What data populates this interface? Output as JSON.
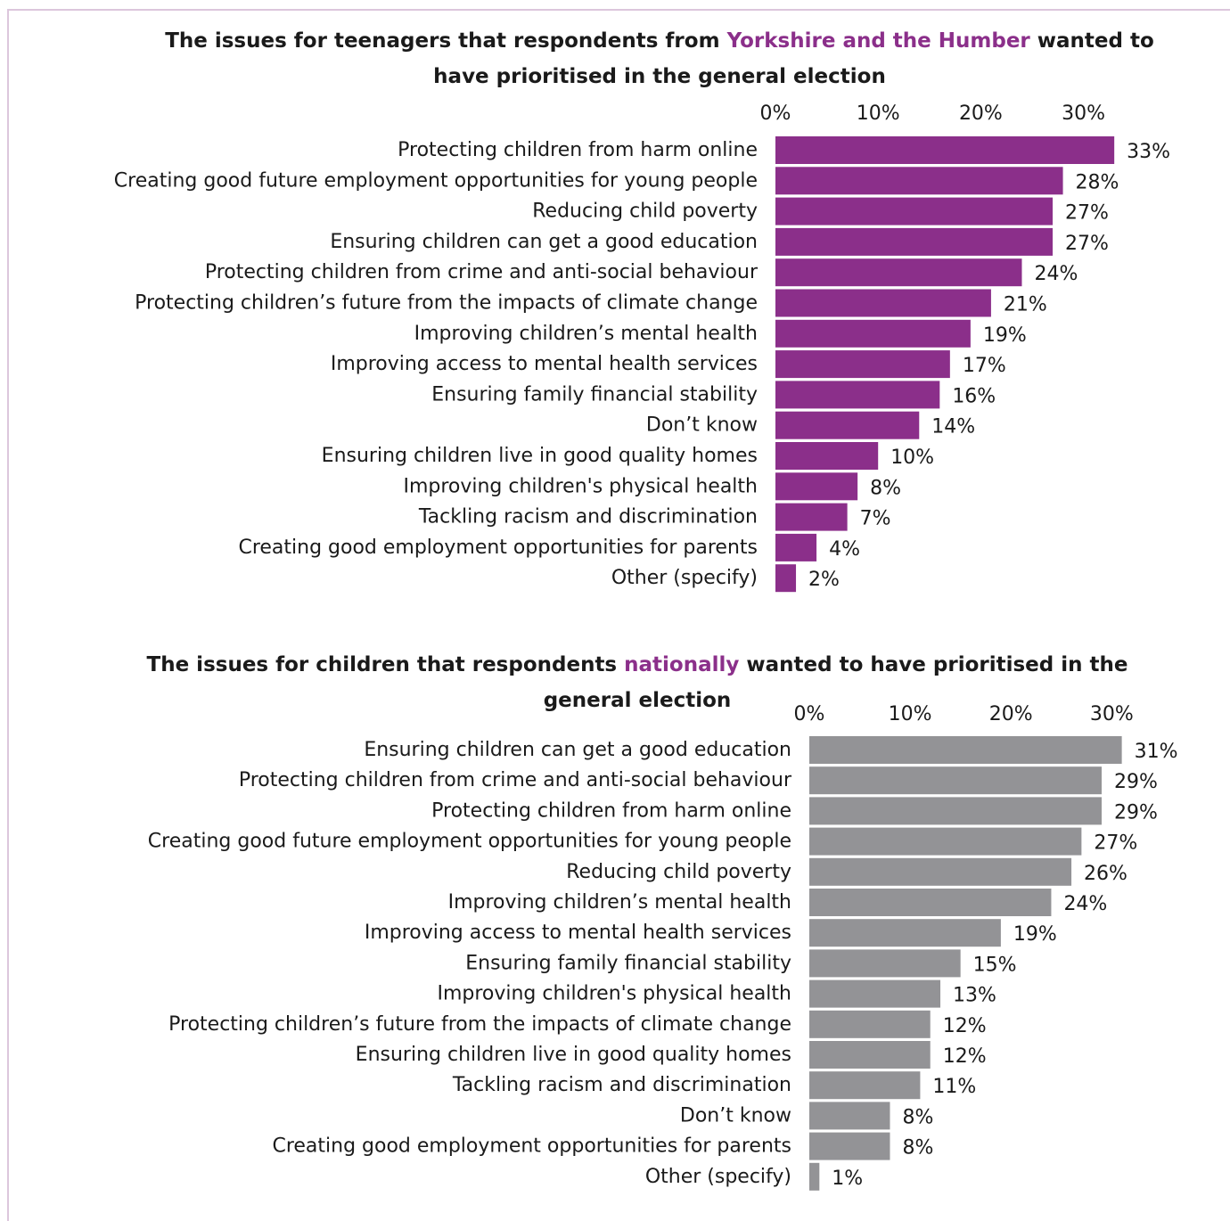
{
  "colors": {
    "regional": "#8b2f8a",
    "national": "#939396",
    "highlight": "#8b2f8a"
  },
  "chart_data": [
    {
      "type": "bar",
      "orientation": "horizontal",
      "title_pre": "The issues for teenagers that respondents from ",
      "title_highlight": "Yorkshire and the Humber",
      "title_post": " wanted to have prioritised in the general election",
      "xlim": [
        0,
        33
      ],
      "ticks": [
        "0%",
        "10%",
        "20%",
        "30%"
      ],
      "tick_values": [
        0,
        10,
        20,
        30
      ],
      "grid": false,
      "categories": [
        "Protecting children from harm online",
        "Creating good future employment opportunities for young people",
        "Reducing child poverty",
        "Ensuring children can get a good education",
        "Protecting children from crime and anti-social behaviour",
        "Protecting children’s future from the impacts of climate change",
        "Improving children’s mental health",
        "Improving access to mental health services",
        "Ensuring family financial stability",
        "Don’t know",
        "Ensuring children live in good quality homes",
        "Improving children's physical health",
        "Tackling racism and discrimination",
        "Creating good employment opportunities for parents",
        "Other (specify)"
      ],
      "values": [
        33,
        28,
        27,
        27,
        24,
        21,
        19,
        17,
        16,
        14,
        10,
        8,
        7,
        4,
        2
      ],
      "value_labels": [
        "33%",
        "28%",
        "27%",
        "27%",
        "24%",
        "21%",
        "19%",
        "17%",
        "16%",
        "14%",
        "10%",
        "8%",
        "7%",
        "4%",
        "2%"
      ]
    },
    {
      "type": "bar",
      "orientation": "horizontal",
      "title_pre": "The issues for children that respondents ",
      "title_highlight": "nationally",
      "title_post": " wanted to have prioritised in the general election",
      "xlim": [
        0,
        31
      ],
      "ticks": [
        "0%",
        "10%",
        "20%",
        "30%"
      ],
      "tick_values": [
        0,
        10,
        20,
        30
      ],
      "grid": false,
      "categories": [
        "Ensuring children can get a good education",
        "Protecting children from crime and anti-social behaviour",
        "Protecting children from harm online",
        "Creating good future employment opportunities for young people",
        "Reducing child poverty",
        "Improving children’s mental health",
        "Improving access to mental health services",
        "Ensuring family financial stability",
        "Improving children's physical health",
        "Protecting children’s future from the impacts of climate change",
        "Ensuring children live in good quality homes",
        "Tackling racism and discrimination",
        "Don’t know",
        "Creating good employment opportunities for parents",
        "Other (specify)"
      ],
      "values": [
        31,
        29,
        29,
        27,
        26,
        24,
        19,
        15,
        13,
        12,
        12,
        11,
        8,
        8,
        1
      ],
      "value_labels": [
        "31%",
        "29%",
        "29%",
        "27%",
        "26%",
        "24%",
        "19%",
        "15%",
        "13%",
        "12%",
        "12%",
        "11%",
        "8%",
        "8%",
        "1%"
      ]
    }
  ]
}
